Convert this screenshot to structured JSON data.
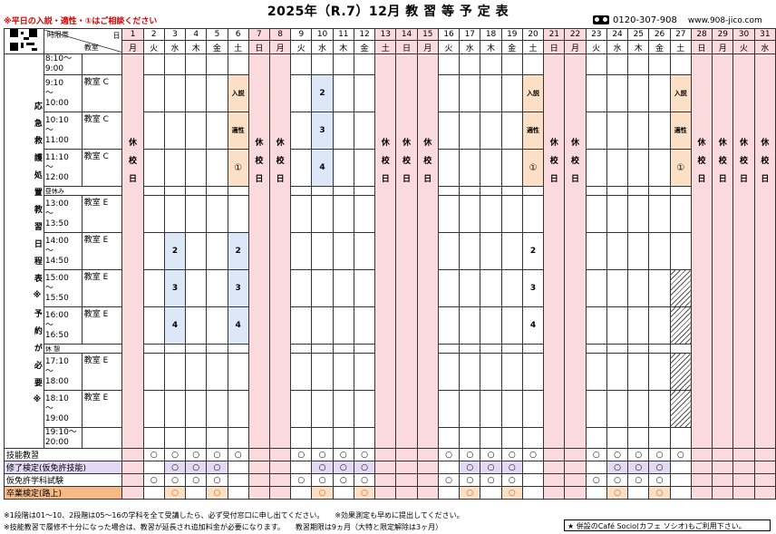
{
  "header": {
    "title": "2025年（R.7）12月 教 習 等 予 定 表",
    "note": "※平日の入説・適性・①はご相談ください",
    "phone": "0120-307-908",
    "url": "www.908-jico.com"
  },
  "labels": {
    "time_slot": "時限帯",
    "classroom": "教室",
    "day": "日",
    "lunch": "昼休み",
    "break": "休 憩",
    "closed": "休校日",
    "side_text": "応急救護処置教習日程表※予約が必要※"
  },
  "days": [
    {
      "d": "1",
      "w": "月",
      "closed": true
    },
    {
      "d": "2",
      "w": "火"
    },
    {
      "d": "3",
      "w": "水"
    },
    {
      "d": "4",
      "w": "木"
    },
    {
      "d": "5",
      "w": "金"
    },
    {
      "d": "6",
      "w": "土"
    },
    {
      "d": "7",
      "w": "日",
      "closed": true
    },
    {
      "d": "8",
      "w": "月",
      "closed": true
    },
    {
      "d": "9",
      "w": "火"
    },
    {
      "d": "10",
      "w": "水"
    },
    {
      "d": "11",
      "w": "木"
    },
    {
      "d": "12",
      "w": "金"
    },
    {
      "d": "13",
      "w": "土",
      "closed": true
    },
    {
      "d": "14",
      "w": "日",
      "closed": true
    },
    {
      "d": "15",
      "w": "月",
      "closed": true
    },
    {
      "d": "16",
      "w": "火"
    },
    {
      "d": "17",
      "w": "水"
    },
    {
      "d": "18",
      "w": "木"
    },
    {
      "d": "19",
      "w": "金"
    },
    {
      "d": "20",
      "w": "土"
    },
    {
      "d": "21",
      "w": "日",
      "closed": true
    },
    {
      "d": "22",
      "w": "月",
      "closed": true
    },
    {
      "d": "23",
      "w": "火"
    },
    {
      "d": "24",
      "w": "水"
    },
    {
      "d": "25",
      "w": "木"
    },
    {
      "d": "26",
      "w": "金"
    },
    {
      "d": "27",
      "w": "土"
    },
    {
      "d": "28",
      "w": "日",
      "closed": true
    },
    {
      "d": "29",
      "w": "月",
      "closed": true
    },
    {
      "d": "30",
      "w": "火",
      "closed": true
    },
    {
      "d": "31",
      "w": "水",
      "closed": true
    }
  ],
  "slots": [
    {
      "time": "8:10～\n9:00",
      "room": ""
    },
    {
      "time": "9:10\n～\n10:00",
      "room": "教室 C"
    },
    {
      "time": "10:10\n～\n11:00",
      "room": "教室 C"
    },
    {
      "time": "11:10\n～\n12:00",
      "room": "教室 C"
    },
    {
      "time": "昼休み",
      "room": ""
    },
    {
      "time": "13:00\n～\n13:50",
      "room": "教室 E"
    },
    {
      "time": "14:00\n～\n14:50",
      "room": "教室 E"
    },
    {
      "time": "15:00\n～\n15:50",
      "room": "教室 E"
    },
    {
      "time": "16:00\n～\n16:50",
      "room": "教室 E"
    },
    {
      "time": "休 憩",
      "room": ""
    },
    {
      "time": "17:10\n～\n18:00",
      "room": "教室 E"
    },
    {
      "time": "18:10\n～\n19:00",
      "room": "教室 E"
    },
    {
      "time": "19:10～\n20:00",
      "room": ""
    }
  ],
  "events": {
    "nyusetsu": "入説",
    "tekisei": "適性",
    "ichi": "①",
    "n2": "2",
    "n3": "3",
    "n4": "4"
  },
  "bottom_rows": [
    {
      "label": "技能教習",
      "style": "plain",
      "marks": [
        2,
        3,
        4,
        5,
        6,
        9,
        10,
        11,
        12,
        16,
        17,
        18,
        19,
        20,
        23,
        24,
        25,
        26,
        27
      ]
    },
    {
      "label": "修了検定(仮免許技能)",
      "style": "purple",
      "marks": [
        3,
        4,
        5,
        10,
        11,
        12,
        17,
        18,
        19,
        24,
        25,
        26
      ]
    },
    {
      "label": "仮免許学科試験",
      "style": "plain",
      "marks": [
        2,
        3,
        4,
        5,
        9,
        10,
        11,
        12,
        16,
        17,
        18,
        19,
        23,
        24,
        25,
        26
      ]
    },
    {
      "label": "卒業検定(路上)",
      "style": "orange",
      "marks": [
        3,
        5,
        10,
        12,
        17,
        19,
        24,
        26
      ]
    }
  ],
  "mark_symbol": "○",
  "footer": {
    "line1": "※1段階は01～10、2段階は05～16の学科を全て受講したら、必ず受付窓口に申し出てください。　　※効果測定も早めに提出してください。",
    "line2": "※技能教習で履修不十分になった場合は、教習が延長され追加料金が必要になります。　　教習期限は9ヵ月（大特と限定解除は3ヶ月）",
    "box": "★ 併設のCafé Socio(カフェ ソシオ)もご利用下さい。"
  },
  "colors": {
    "closed": "#fadadd",
    "class_block": "#dce8f7",
    "aptitude_block": "#fbe0c6",
    "note_red": "#d60000"
  }
}
